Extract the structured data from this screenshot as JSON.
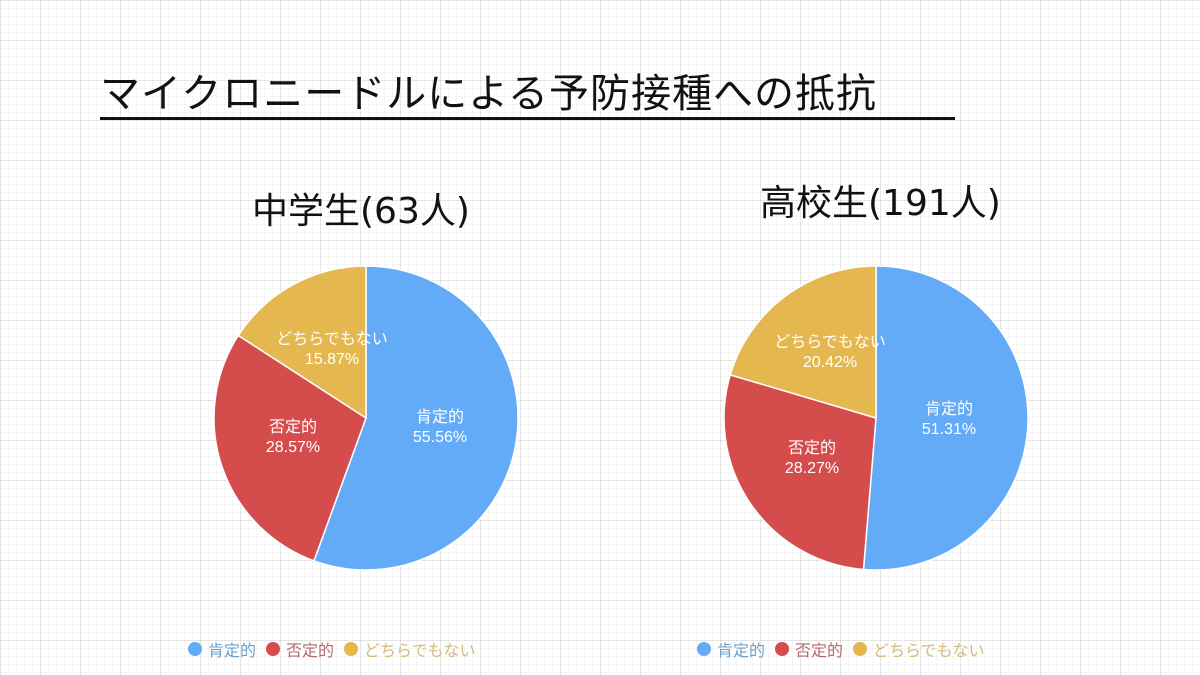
{
  "title": "マイクロニードルによる予防接種への抵抗",
  "colors": {
    "positive": "#63abf7",
    "negative": "#d54c4c",
    "neutral": "#e5b84f"
  },
  "chart_data": [
    {
      "type": "pie",
      "title": "中学生(63人)",
      "categories": [
        "肯定的",
        "否定的",
        "どちらでもない"
      ],
      "values": [
        55.56,
        28.57,
        15.87
      ],
      "unit": "%",
      "legend_position": "bottom"
    },
    {
      "type": "pie",
      "title": "高校生(191人)",
      "categories": [
        "肯定的",
        "否定的",
        "どちらでもない"
      ],
      "values": [
        51.31,
        28.27,
        20.42
      ],
      "unit": "%",
      "legend_position": "bottom"
    }
  ],
  "charts": [
    {
      "subtitle": "中学生(63人)",
      "slices": [
        {
          "label": "肯定的",
          "pct": "55.56%"
        },
        {
          "label": "否定的",
          "pct": "28.57%"
        },
        {
          "label": "どちらでもない",
          "pct": "15.87%"
        }
      ],
      "legend": [
        "肯定的",
        "否定的",
        "どちらでもない"
      ]
    },
    {
      "subtitle": "高校生(191人)",
      "slices": [
        {
          "label": "肯定的",
          "pct": "51.31%"
        },
        {
          "label": "否定的",
          "pct": "28.27%"
        },
        {
          "label": "どちらでもない",
          "pct": "20.42%"
        }
      ],
      "legend": [
        "肯定的",
        "否定的",
        "どちらでもない"
      ]
    }
  ]
}
